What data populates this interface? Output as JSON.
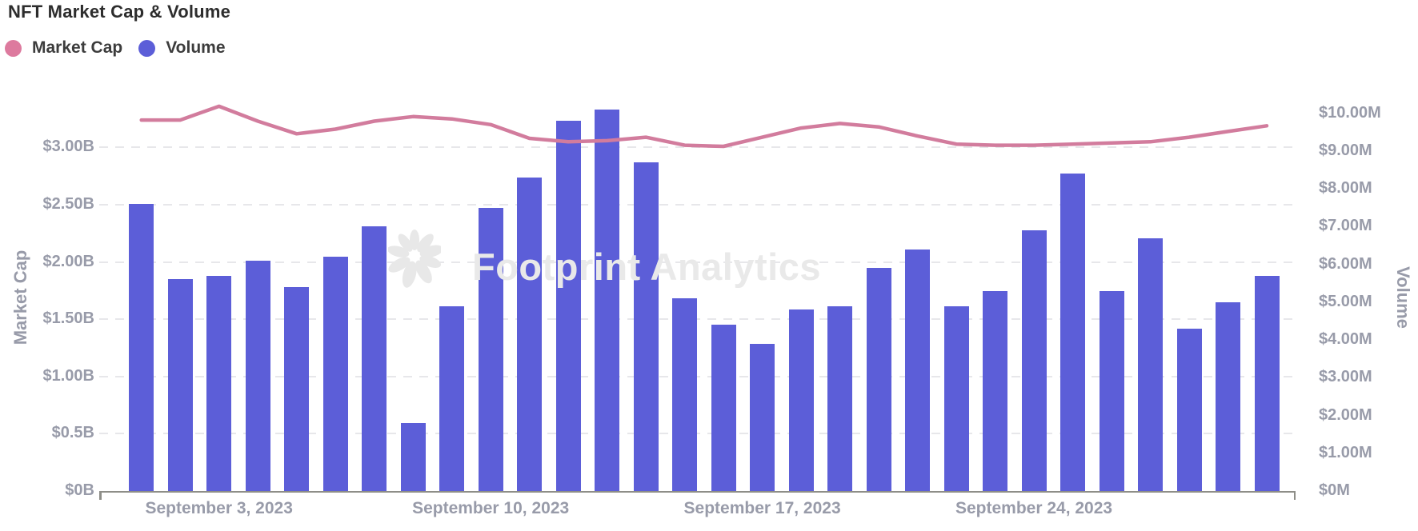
{
  "title": "NFT Market Cap & Volume",
  "legend": [
    {
      "label": "Market Cap",
      "color": "#dd7a9e"
    },
    {
      "label": "Volume",
      "color": "#5c5ed8"
    }
  ],
  "watermark": {
    "text": "Footprint Analytics",
    "icon": "footprint-flower-logo"
  },
  "chart_data": {
    "type": "combo",
    "x": {
      "month": "September",
      "year": 2023,
      "days": [
        1,
        2,
        3,
        4,
        5,
        6,
        7,
        8,
        9,
        10,
        11,
        12,
        13,
        14,
        15,
        16,
        17,
        18,
        19,
        20,
        21,
        22,
        23,
        24,
        25,
        26,
        27,
        28,
        29,
        30
      ]
    },
    "x_axis": {
      "ticks": [
        {
          "day": 3,
          "label": "September 3, 2023"
        },
        {
          "day": 10,
          "label": "September 10, 2023"
        },
        {
          "day": 17,
          "label": "September 17, 2023"
        },
        {
          "day": 24,
          "label": "September 24, 2023"
        }
      ]
    },
    "series": [
      {
        "name": "Market Cap",
        "type": "line",
        "axis": "left",
        "unit": "USD billions",
        "color": "#d27c9d",
        "values": [
          3.24,
          3.24,
          3.36,
          3.23,
          3.12,
          3.16,
          3.23,
          3.27,
          3.25,
          3.2,
          3.08,
          3.05,
          3.06,
          3.09,
          3.02,
          3.01,
          3.09,
          3.17,
          3.21,
          3.18,
          3.1,
          3.03,
          3.02,
          3.02,
          3.03,
          3.04,
          3.05,
          3.09,
          3.14,
          3.19
        ]
      },
      {
        "name": "Volume",
        "type": "bar",
        "axis": "right",
        "unit": "USD millions",
        "color": "#5c5ed8",
        "values": [
          7.6,
          5.6,
          5.7,
          6.1,
          5.4,
          6.2,
          7.0,
          1.8,
          4.9,
          7.5,
          8.3,
          9.8,
          10.1,
          8.7,
          5.1,
          4.4,
          3.9,
          4.8,
          4.9,
          5.9,
          6.4,
          4.9,
          5.3,
          6.9,
          8.4,
          5.3,
          6.7,
          4.3,
          5.0,
          5.7
        ]
      }
    ],
    "left_axis": {
      "title": "Market Cap",
      "max": 3.52,
      "ticks": [
        {
          "v": 0,
          "label": "$0B"
        },
        {
          "v": 0.5,
          "label": "$0.5B"
        },
        {
          "v": 1,
          "label": "$1.00B"
        },
        {
          "v": 1.5,
          "label": "$1.50B"
        },
        {
          "v": 2,
          "label": "$2.00B"
        },
        {
          "v": 2.5,
          "label": "$2.50B"
        },
        {
          "v": 3,
          "label": "$3.00B"
        }
      ],
      "gridline_values": [
        0.5,
        1,
        1.5,
        2,
        2.5,
        3
      ]
    },
    "right_axis": {
      "title": "Volume",
      "max": 10.67,
      "ticks": [
        {
          "v": 0,
          "label": "$0M"
        },
        {
          "v": 1,
          "label": "$1.00M"
        },
        {
          "v": 2,
          "label": "$2.00M"
        },
        {
          "v": 3,
          "label": "$3.00M"
        },
        {
          "v": 4,
          "label": "$4.00M"
        },
        {
          "v": 5,
          "label": "$5.00M"
        },
        {
          "v": 6,
          "label": "$6.00M"
        },
        {
          "v": 7,
          "label": "$7.00M"
        },
        {
          "v": 8,
          "label": "$8.00M"
        },
        {
          "v": 9,
          "label": "$9.00M"
        },
        {
          "v": 10,
          "label": "$10.00M"
        }
      ]
    }
  }
}
